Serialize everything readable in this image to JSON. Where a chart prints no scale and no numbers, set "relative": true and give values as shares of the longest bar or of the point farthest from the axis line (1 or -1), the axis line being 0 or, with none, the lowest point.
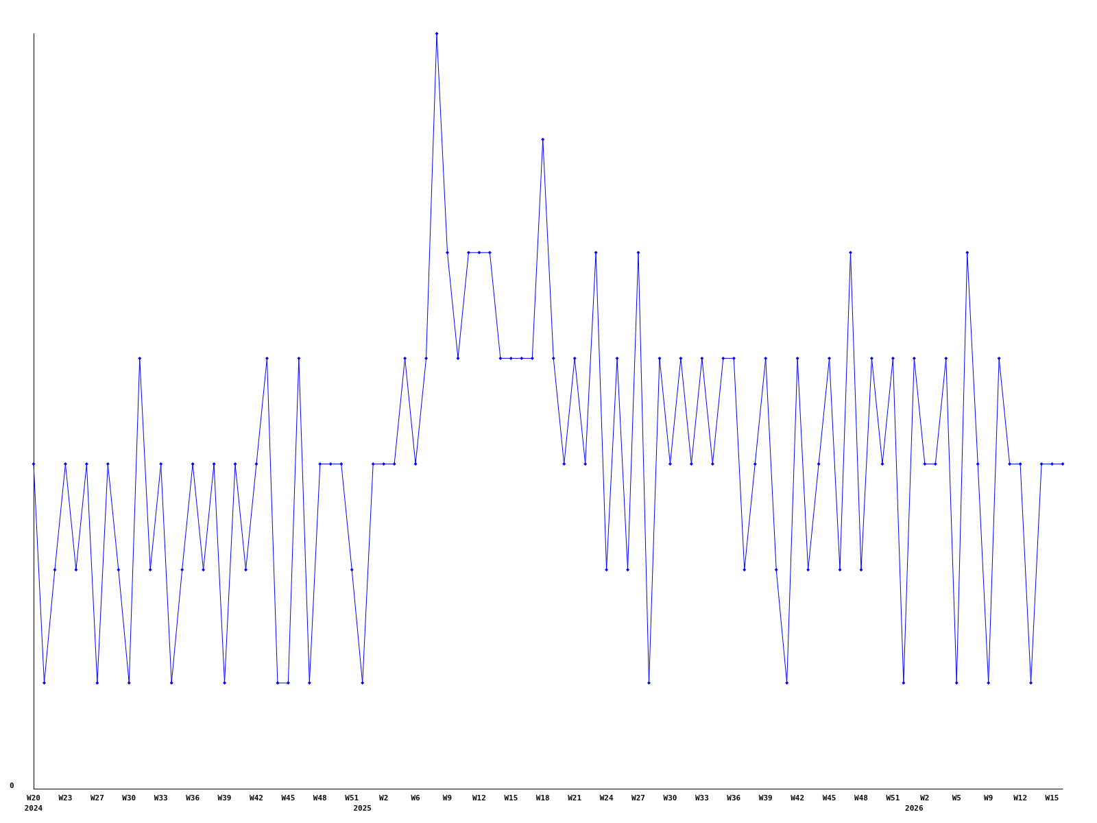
{
  "chart_data": {
    "type": "line",
    "relative": true,
    "marker": "diamond",
    "categories": [
      "W20\n2024",
      null,
      null,
      "W23",
      null,
      null,
      "W27",
      null,
      null,
      "W30",
      null,
      null,
      "W33",
      null,
      null,
      "W36",
      null,
      null,
      "W39",
      null,
      null,
      "W42",
      null,
      null,
      "W45",
      null,
      null,
      "W48",
      null,
      null,
      "W51",
      "\n2025",
      null,
      "W2",
      null,
      null,
      "W6",
      null,
      null,
      "W9",
      null,
      null,
      "W12",
      null,
      null,
      "W15",
      null,
      null,
      "W18",
      null,
      null,
      "W21",
      null,
      null,
      "W24",
      null,
      null,
      "W27",
      null,
      null,
      "W30",
      null,
      null,
      "W33",
      null,
      null,
      "W36",
      null,
      null,
      "W39",
      null,
      null,
      "W42",
      null,
      null,
      "W45",
      null,
      null,
      "W48",
      null,
      null,
      "W51",
      null,
      "\n2026",
      "W2",
      null,
      null,
      "W5",
      null,
      null,
      "W9",
      null,
      null,
      "W12",
      null,
      null,
      "W15",
      null
    ],
    "series": [
      {
        "color": "#0000ff",
        "values": [
          0.43,
          0.14,
          0.29,
          0.43,
          0.29,
          0.43,
          0.14,
          0.43,
          0.29,
          0.14,
          0.57,
          0.29,
          0.43,
          0.14,
          0.29,
          0.43,
          0.29,
          0.43,
          0.14,
          0.43,
          0.29,
          0.43,
          0.57,
          0.14,
          0.14,
          0.57,
          0.14,
          0.43,
          0.43,
          0.43,
          0.29,
          0.14,
          0.43,
          0.43,
          0.43,
          0.57,
          0.43,
          0.57,
          1,
          0.71,
          0.57,
          0.71,
          0.71,
          0.71,
          0.57,
          0.57,
          0.57,
          0.57,
          0.86,
          0.57,
          0.43,
          0.57,
          0.43,
          0.71,
          0.29,
          0.57,
          0.29,
          0.71,
          0.14,
          0.57,
          0.43,
          0.57,
          0.43,
          0.57,
          0.43,
          0.57,
          0.57,
          0.29,
          0.43,
          0.57,
          0.29,
          0.14,
          0.57,
          0.29,
          0.43,
          0.57,
          0.29,
          0.71,
          0.29,
          0.57,
          0.43,
          0.57,
          0.14,
          0.57,
          0.43,
          0.43,
          0.57,
          0.14,
          0.71,
          0.43,
          0.14,
          0.57,
          0.43,
          0.43,
          0.14,
          0.43,
          0.43,
          0.43
        ]
      }
    ],
    "annotations": [
      "0"
    ]
  }
}
